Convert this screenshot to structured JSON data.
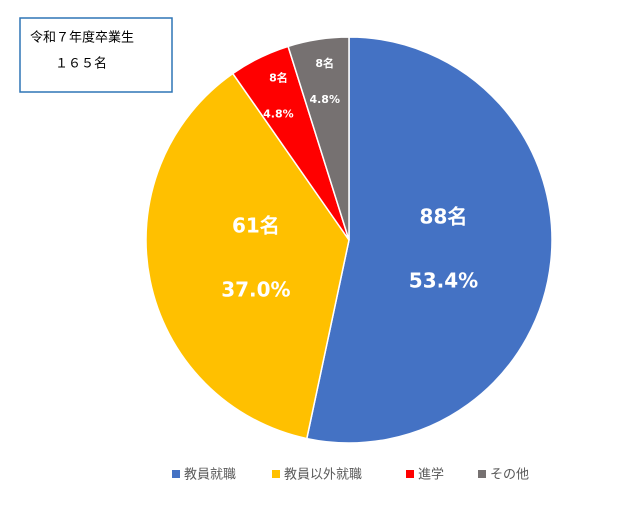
{
  "chart_data": {
    "type": "pie",
    "annotations": [
      "令和７年度卒業生",
      "１６５名"
    ],
    "categories": [
      "教員就職",
      "教員以外就職",
      "進学",
      "その他"
    ],
    "colors": [
      "#4472c4",
      "#ffc000",
      "#ff0000",
      "#767171"
    ],
    "values": [
      88,
      61,
      8,
      8
    ],
    "value_labels": [
      "88名",
      "61名",
      "8名",
      "8名"
    ],
    "percent_values": [
      53.4,
      37.0,
      4.8,
      4.8
    ],
    "percent_labels": [
      "53.4%",
      "37.0%",
      "4.8%",
      "4.8%"
    ]
  }
}
